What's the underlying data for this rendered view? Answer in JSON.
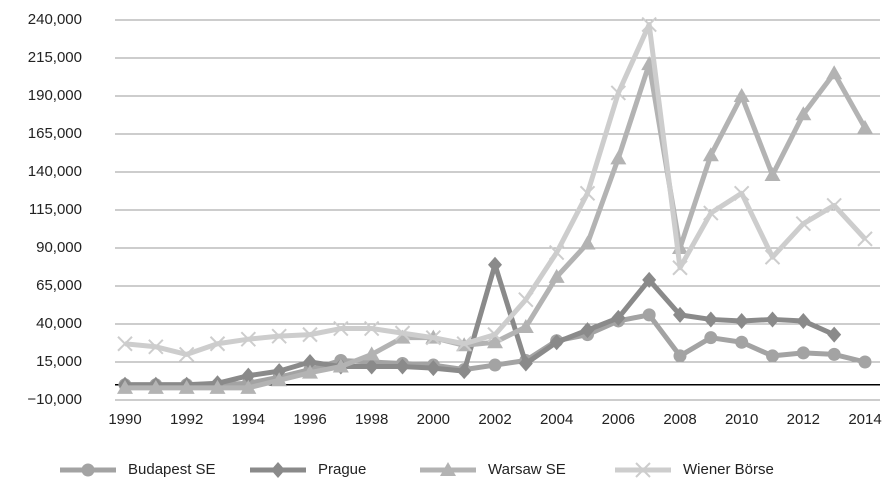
{
  "chart_data": {
    "type": "line",
    "x": [
      1990,
      1991,
      1992,
      1993,
      1994,
      1995,
      1996,
      1997,
      1998,
      1999,
      2000,
      2001,
      2002,
      2003,
      2004,
      2005,
      2006,
      2007,
      2008,
      2009,
      2010,
      2011,
      2012,
      2013,
      2014
    ],
    "xlim": [
      1990,
      2014
    ],
    "xticks": [
      1990,
      1992,
      1994,
      1996,
      1998,
      2000,
      2002,
      2004,
      2006,
      2008,
      2010,
      2012,
      2014
    ],
    "ylim": [
      -10000,
      240000
    ],
    "yticks": [
      {
        "value": -10000,
        "label": "−10,000"
      },
      {
        "value": 15000,
        "label": "15,000"
      },
      {
        "value": 40000,
        "label": "40,000"
      },
      {
        "value": 65000,
        "label": "65,000"
      },
      {
        "value": 90000,
        "label": "90,000"
      },
      {
        "value": 115000,
        "label": "115,000"
      },
      {
        "value": 140000,
        "label": "140,000"
      },
      {
        "value": 165000,
        "label": "165,000"
      },
      {
        "value": 190000,
        "label": "190,000"
      },
      {
        "value": 215000,
        "label": "215,000"
      },
      {
        "value": 240000,
        "label": "240,000"
      }
    ],
    "grid": true,
    "legend": "bottom",
    "series": [
      {
        "name": "Budapest SE",
        "color": "#a3a3a3",
        "marker": "circle",
        "values": [
          0,
          0,
          0,
          0,
          1000,
          5000,
          10000,
          16000,
          15000,
          14000,
          13000,
          10000,
          13000,
          16000,
          29000,
          33000,
          42000,
          46000,
          19000,
          31000,
          28000,
          19000,
          21000,
          20000,
          15000
        ]
      },
      {
        "name": "Prague",
        "color": "#8a8a8a",
        "marker": "diamond",
        "values": [
          0,
          0,
          0,
          1000,
          6000,
          9000,
          15000,
          12000,
          12000,
          12000,
          11000,
          9000,
          79000,
          14000,
          28000,
          36000,
          44000,
          69000,
          46000,
          43000,
          42000,
          43000,
          42000,
          33000,
          null
        ]
      },
      {
        "name": "Warsaw SE",
        "color": "#b3b3b3",
        "marker": "triangle",
        "values": [
          -2000,
          -2000,
          -2000,
          -2000,
          -2000,
          3000,
          8000,
          12000,
          20000,
          31000,
          31000,
          26000,
          28000,
          38000,
          71000,
          93000,
          149000,
          211000,
          90000,
          151000,
          190000,
          138000,
          178000,
          205000,
          169000
        ]
      },
      {
        "name": "Wiener Börse",
        "color": "#cdcdcd",
        "marker": "x",
        "values": [
          27000,
          25000,
          20000,
          27000,
          30000,
          32000,
          33000,
          37000,
          37000,
          34000,
          31000,
          27000,
          33000,
          56000,
          87000,
          126000,
          192000,
          237000,
          77000,
          113000,
          126000,
          84000,
          106000,
          118000,
          96000
        ]
      }
    ]
  }
}
